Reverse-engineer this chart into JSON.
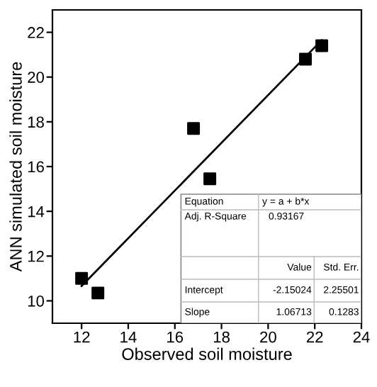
{
  "chart_data": {
    "type": "scatter",
    "xlabel": "Observed soil moisture",
    "ylabel": "ANN simulated soil moisture",
    "xlim": [
      10.75,
      24
    ],
    "ylim": [
      9,
      23
    ],
    "xticks": [
      12,
      14,
      16,
      18,
      20,
      22,
      24
    ],
    "yticks": [
      10,
      12,
      14,
      16,
      18,
      20,
      22
    ],
    "grid": false,
    "legend": false,
    "series": [
      {
        "marker": "square",
        "color": "#000000",
        "x": [
          12,
          12.7,
          16.8,
          17.5,
          21.6,
          22.3
        ],
        "values": [
          11.0,
          10.35,
          17.7,
          15.45,
          20.8,
          21.4
        ]
      },
      {
        "type": "line",
        "marker": "none",
        "color": "#000000",
        "line_style": "solid",
        "x": [
          12,
          22.3
        ],
        "values": [
          10.66,
          21.65
        ]
      }
    ],
    "annotations": [
      "Equation",
      "y = a + b*x",
      "Adj. R-Square",
      "0.93167",
      "Value",
      "Std. Err.",
      "Intercept",
      "-2.15024",
      "2.25501",
      "Slope",
      "1.06713",
      "0.1283"
    ]
  }
}
